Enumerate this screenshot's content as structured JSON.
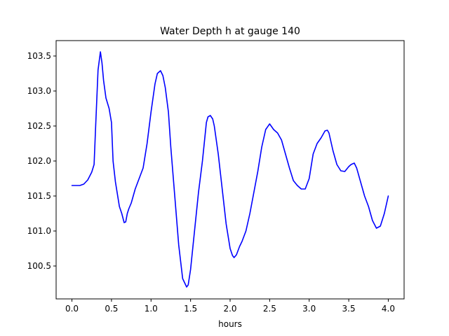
{
  "chart_data": {
    "type": "line",
    "title": "Water Depth h at gauge 140",
    "xlabel": "hours",
    "ylabel": "",
    "xlim": [
      -0.2,
      4.2
    ],
    "ylim": [
      100.03,
      103.72
    ],
    "xticks": [
      0.0,
      0.5,
      1.0,
      1.5,
      2.0,
      2.5,
      3.0,
      3.5,
      4.0
    ],
    "xtick_labels": [
      "0.0",
      "0.5",
      "1.0",
      "1.5",
      "2.0",
      "2.5",
      "3.0",
      "3.5",
      "4.0"
    ],
    "yticks": [
      100.5,
      101.0,
      101.5,
      102.0,
      102.5,
      103.0,
      103.5
    ],
    "ytick_labels": [
      "100.5",
      "101.0",
      "101.5",
      "102.0",
      "102.5",
      "103.0",
      "103.5"
    ],
    "grid": false,
    "colors": {
      "line": "#0000ff",
      "axes": "#000000",
      "background": "#ffffff"
    },
    "series": [
      {
        "x": [
          0.0,
          0.1,
          0.15,
          0.2,
          0.25,
          0.28,
          0.3,
          0.33,
          0.36,
          0.38,
          0.4,
          0.43,
          0.47,
          0.5,
          0.52,
          0.55,
          0.6,
          0.63,
          0.66,
          0.68,
          0.7,
          0.72,
          0.75,
          0.8,
          0.85,
          0.9,
          0.95,
          1.0,
          1.05,
          1.08,
          1.12,
          1.15,
          1.18,
          1.22,
          1.25,
          1.3,
          1.35,
          1.4,
          1.45,
          1.47,
          1.5,
          1.55,
          1.6,
          1.65,
          1.7,
          1.72,
          1.75,
          1.78,
          1.8,
          1.85,
          1.9,
          1.95,
          2.0,
          2.03,
          2.05,
          2.08,
          2.12,
          2.15,
          2.2,
          2.25,
          2.3,
          2.35,
          2.4,
          2.45,
          2.5,
          2.55,
          2.6,
          2.65,
          2.7,
          2.75,
          2.8,
          2.85,
          2.9,
          2.95,
          3.0,
          3.05,
          3.1,
          3.15,
          3.2,
          3.23,
          3.25,
          3.3,
          3.35,
          3.4,
          3.45,
          3.5,
          3.53,
          3.57,
          3.6,
          3.65,
          3.7,
          3.75,
          3.8,
          3.85,
          3.9,
          3.95,
          4.0
        ],
        "y": [
          101.65,
          101.65,
          101.67,
          101.73,
          101.84,
          101.95,
          102.5,
          103.3,
          103.56,
          103.4,
          103.15,
          102.9,
          102.75,
          102.55,
          102.0,
          101.7,
          101.35,
          101.25,
          101.12,
          101.13,
          101.25,
          101.32,
          101.4,
          101.6,
          101.75,
          101.9,
          102.25,
          102.7,
          103.1,
          103.25,
          103.29,
          103.22,
          103.05,
          102.7,
          102.2,
          101.5,
          100.8,
          100.32,
          100.2,
          100.23,
          100.45,
          101.0,
          101.55,
          102.0,
          102.55,
          102.63,
          102.65,
          102.6,
          102.5,
          102.1,
          101.6,
          101.1,
          100.75,
          100.65,
          100.62,
          100.66,
          100.78,
          100.85,
          101.0,
          101.25,
          101.55,
          101.85,
          102.2,
          102.45,
          102.53,
          102.45,
          102.4,
          102.3,
          102.1,
          101.9,
          101.72,
          101.65,
          101.6,
          101.6,
          101.75,
          102.1,
          102.25,
          102.33,
          102.43,
          102.44,
          102.4,
          102.15,
          101.95,
          101.86,
          101.85,
          101.92,
          101.95,
          101.97,
          101.9,
          101.7,
          101.5,
          101.35,
          101.15,
          101.04,
          101.07,
          101.25,
          101.5
        ]
      }
    ]
  }
}
